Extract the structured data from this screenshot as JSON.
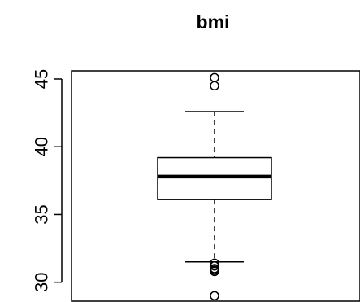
{
  "chart_data": {
    "type": "boxplot",
    "title": "bmi",
    "xlabel": "",
    "ylabel": "",
    "ylim": [
      28.6,
      45.6
    ],
    "yticks": [
      30,
      35,
      40,
      45
    ],
    "ytick_labels": [
      "30",
      "35",
      "40",
      "45"
    ],
    "grid": false,
    "box": {
      "whisker_low": 31.5,
      "q1": 36.1,
      "median": 37.8,
      "q3": 39.2,
      "whisker_high": 42.6
    },
    "outliers": [
      45.1,
      44.5,
      31.4,
      31.2,
      31.0,
      30.9,
      30.8,
      29.0
    ],
    "colors": {
      "stroke": "#000000",
      "background": "#ffffff"
    }
  }
}
